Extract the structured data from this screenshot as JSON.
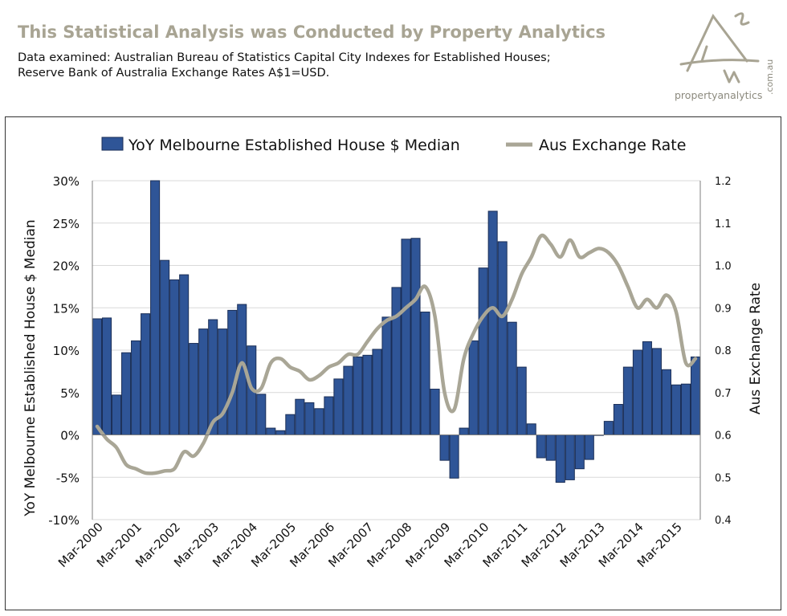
{
  "header": {
    "title": "This Statistical Analysis was Conducted  by Property Analytics",
    "subtitle_line1": "Data examined: Australian Bureau of Statistics Capital City Indexes for Established Houses;",
    "subtitle_line2": "Reserve Bank of Australia Exchange Rates A$1=USD."
  },
  "logo": {
    "name": "propertyanalytics",
    "suffix": ".com.au"
  },
  "colors": {
    "bar": "#2f5597",
    "bar_edge": "#1b2f57",
    "line": "#a9a696",
    "title": "#a8a493"
  },
  "chart_data": {
    "type": "bar",
    "legend": [
      "YoY Melbourne Established House $ Median",
      "Aus Exchange Rate"
    ],
    "legend_position": "top",
    "ylabel_left": "YoY Melbourne Established House $ Median",
    "ylabel_right": "Aus Exchange Rate",
    "ylim_left": [
      -0.1,
      0.3
    ],
    "ylim_right": [
      0.4,
      1.2
    ],
    "yticks_left": [
      "30%",
      "25%",
      "20%",
      "15%",
      "10%",
      "5%",
      "0%",
      "-5%",
      "-10%"
    ],
    "yticks_right": [
      "1.2",
      "1.1",
      "1.0",
      "0.9",
      "0.8",
      "0.7",
      "0.6",
      "0.5",
      "0.4"
    ],
    "x_labels": [
      "Mar-2000",
      "Mar-2001",
      "Mar-2002",
      "Mar-2003",
      "Mar-2004",
      "Mar-2005",
      "Mar-2006",
      "Mar-2007",
      "Mar-2008",
      "Mar-2009",
      "Mar-2010",
      "Mar-2011",
      "Mar-2012",
      "Mar-2013",
      "Mar-2014",
      "Mar-2015"
    ],
    "grid": true,
    "series": [
      {
        "name": "YoY Melbourne Established House $ Median",
        "type": "bar",
        "axis": "left",
        "values": [
          0.137,
          0.138,
          0.047,
          0.097,
          0.111,
          0.143,
          0.3,
          0.206,
          0.183,
          0.189,
          0.108,
          0.125,
          0.136,
          0.125,
          0.147,
          0.154,
          0.105,
          0.048,
          0.008,
          0.005,
          0.024,
          0.042,
          0.038,
          0.031,
          0.045,
          0.066,
          0.081,
          0.092,
          0.094,
          0.101,
          0.139,
          0.174,
          0.231,
          0.232,
          0.145,
          0.054,
          -0.03,
          -0.051,
          0.008,
          0.111,
          0.197,
          0.264,
          0.228,
          0.133,
          0.08,
          0.013,
          -0.027,
          -0.03,
          -0.056,
          -0.053,
          -0.04,
          -0.029,
          0.0,
          0.016,
          0.036,
          0.08,
          0.1,
          0.11,
          0.102,
          0.077,
          0.059,
          0.06,
          0.092
        ]
      },
      {
        "name": "Aus Exchange Rate",
        "type": "line",
        "axis": "right",
        "values": [
          0.62,
          0.59,
          0.57,
          0.53,
          0.52,
          0.51,
          0.51,
          0.515,
          0.52,
          0.56,
          0.55,
          0.58,
          0.63,
          0.65,
          0.7,
          0.77,
          0.71,
          0.71,
          0.77,
          0.78,
          0.76,
          0.75,
          0.73,
          0.74,
          0.76,
          0.77,
          0.79,
          0.79,
          0.82,
          0.85,
          0.87,
          0.88,
          0.9,
          0.92,
          0.95,
          0.88,
          0.7,
          0.66,
          0.78,
          0.84,
          0.88,
          0.9,
          0.88,
          0.92,
          0.98,
          1.02,
          1.07,
          1.05,
          1.02,
          1.06,
          1.02,
          1.03,
          1.04,
          1.03,
          1.0,
          0.95,
          0.9,
          0.92,
          0.9,
          0.93,
          0.89,
          0.77,
          0.78
        ]
      }
    ]
  }
}
